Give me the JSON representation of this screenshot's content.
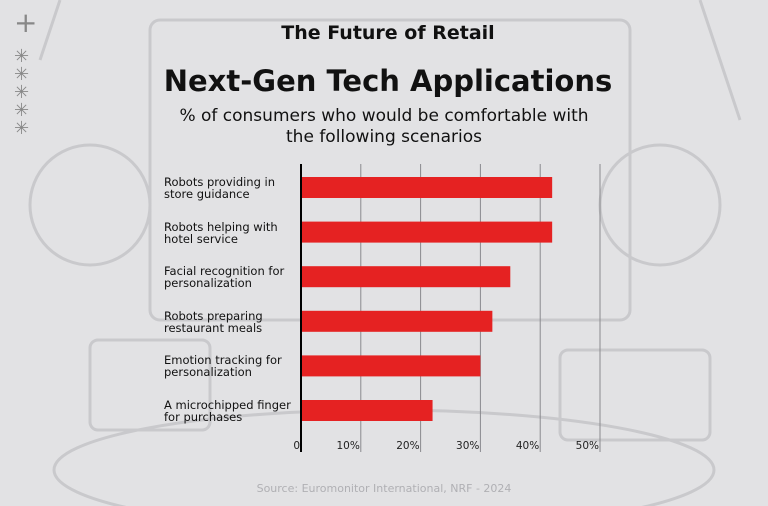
{
  "chart_data": {
    "type": "bar",
    "orientation": "horizontal",
    "supertitle": "The Future of Retail",
    "title": "Next-Gen Tech Applications",
    "subtitle_lines": [
      "% of consumers who would be comfortable with",
      "the following scenarios"
    ],
    "categories": [
      [
        "Robots providing in",
        "store guidance"
      ],
      [
        "Robots helping with",
        "hotel service"
      ],
      [
        "Facial recognition for",
        "personalization"
      ],
      [
        "Robots preparing",
        "restaurant meals"
      ],
      [
        "Emotion tracking for",
        "personalization"
      ],
      [
        "A microchipped finger",
        "for purchases"
      ]
    ],
    "values": [
      42,
      42,
      35,
      32,
      30,
      22
    ],
    "xlim": [
      0,
      50
    ],
    "xticks": [
      0,
      10,
      20,
      30,
      40,
      50
    ],
    "xtick_labels": [
      "0",
      "10%",
      "20%",
      "30%",
      "40%",
      "50%"
    ],
    "grid": true,
    "bar_color": "#e52222",
    "source": "Source: Euromonitor International, NRF - 2024"
  }
}
